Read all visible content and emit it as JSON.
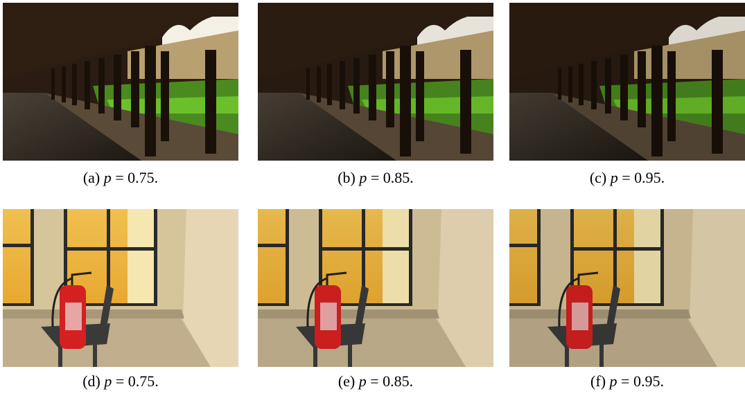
{
  "panels": [
    {
      "tag": "(a)",
      "var": "p",
      "rest": "= 0.75."
    },
    {
      "tag": "(b)",
      "var": "p",
      "rest": "= 0.85."
    },
    {
      "tag": "(c)",
      "var": "p",
      "rest": "= 0.95."
    },
    {
      "tag": "(d)",
      "var": "p",
      "rest": "= 0.75."
    },
    {
      "tag": "(e)",
      "var": "p",
      "rest": "= 0.85."
    },
    {
      "tag": "(f)",
      "var": "p",
      "rest": "= 0.95."
    }
  ]
}
